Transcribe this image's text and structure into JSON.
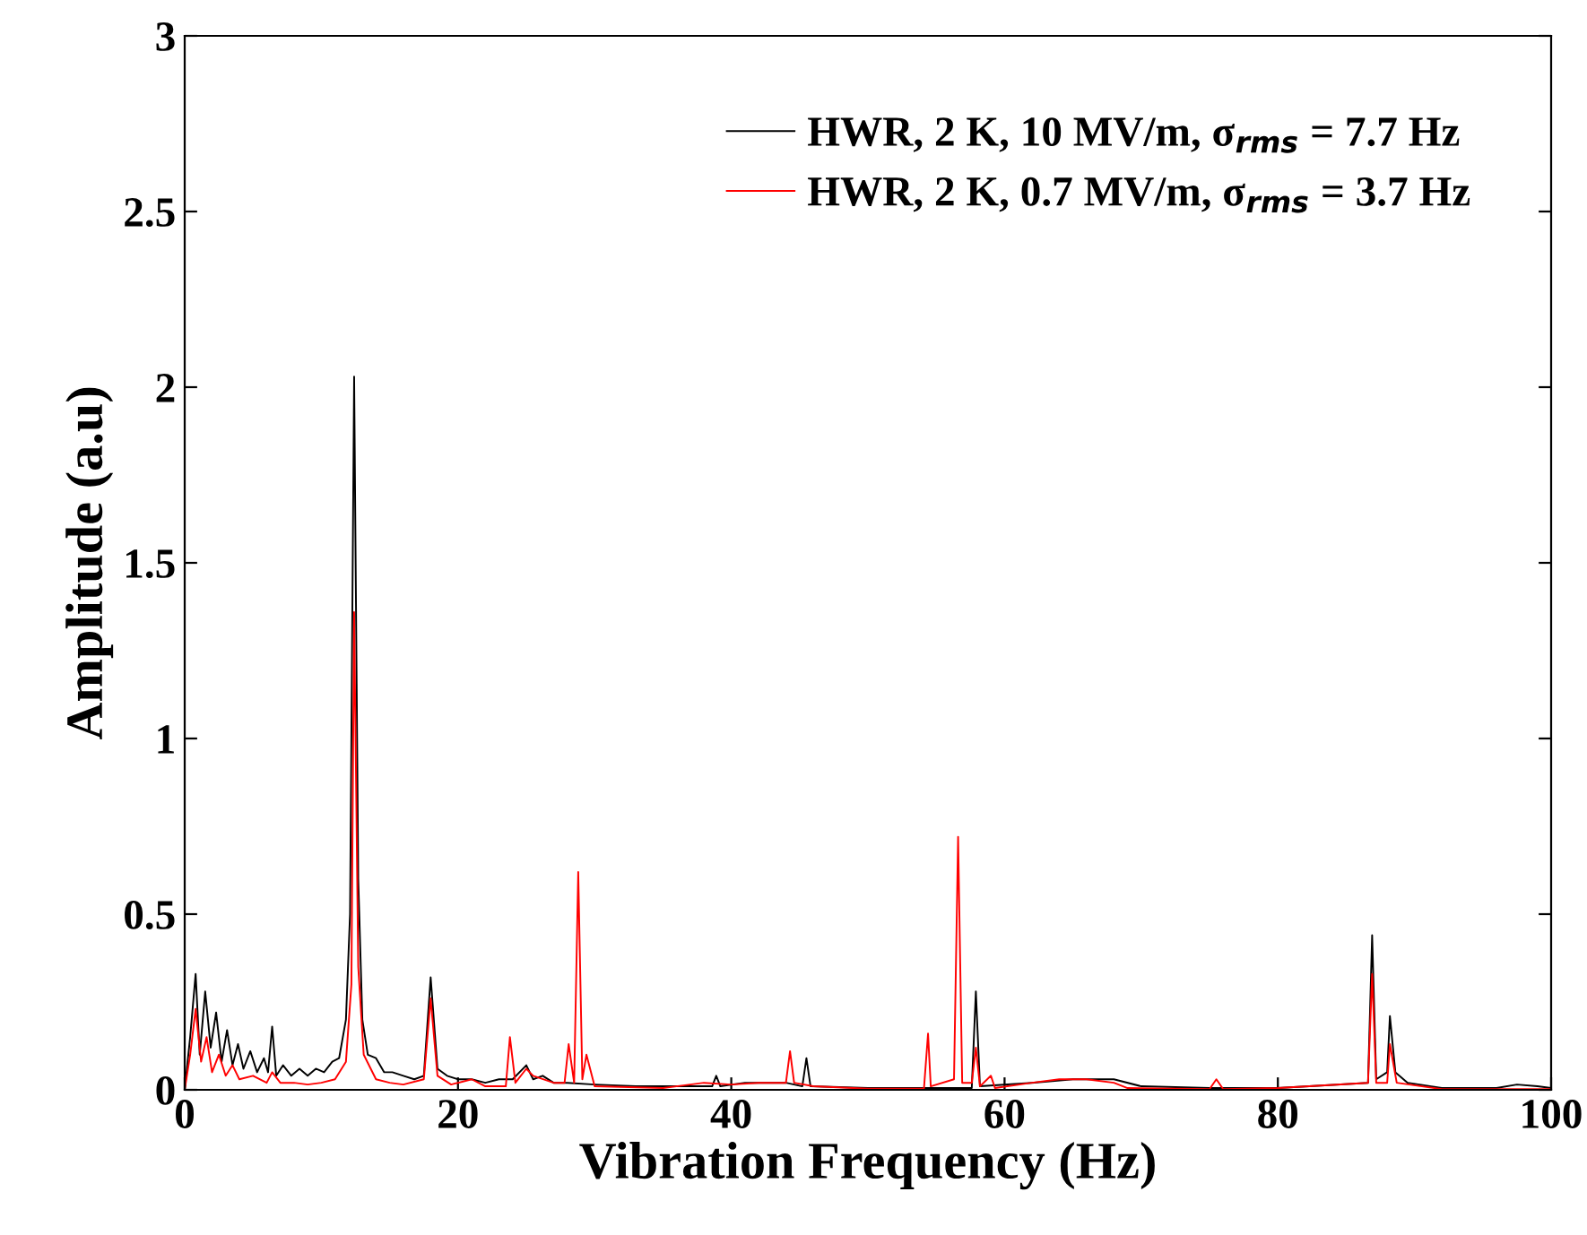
{
  "chart_data": {
    "type": "line",
    "xlabel": "Vibration Frequency (Hz)",
    "ylabel": "Amplitude (a.u)",
    "xlim": [
      0,
      100
    ],
    "xticks": [
      0,
      20,
      40,
      60,
      80,
      100
    ],
    "ylim": [
      0,
      3
    ],
    "yticks": [
      0,
      0.5,
      1,
      1.5,
      2,
      2.5,
      3
    ],
    "grid": false,
    "legend": "top right",
    "line_style": "solid",
    "marker": "none",
    "series": [
      {
        "name": "HWR, 2 K, 10 MV/m, σ$_{rms}$ = 7.7 Hz",
        "color": "#000000",
        "x": [
          0,
          0.4,
          0.8,
          1.1,
          1.5,
          1.9,
          2.3,
          2.7,
          3.1,
          3.5,
          3.9,
          4.3,
          4.8,
          5.3,
          5.8,
          6.1,
          6.4,
          6.7,
          7.2,
          7.8,
          8.4,
          9,
          9.6,
          10.2,
          10.8,
          11.3,
          11.8,
          12.1,
          12.4,
          12.7,
          13,
          13.4,
          14,
          14.6,
          15.2,
          16,
          16.8,
          17.5,
          18,
          18.5,
          19.2,
          20,
          21,
          22,
          23,
          24,
          25,
          25.5,
          26.2,
          27,
          28,
          30,
          33,
          36,
          38.6,
          38.9,
          39.2,
          41,
          44,
          45.2,
          45.5,
          45.8,
          50,
          54,
          57.6,
          57.9,
          58.2,
          62,
          65,
          68,
          70,
          75,
          80,
          86.6,
          86.9,
          87.2,
          88,
          88.2,
          88.6,
          89.5,
          92,
          96,
          97.5,
          99,
          100
        ],
        "values": [
          0,
          0.15,
          0.33,
          0.1,
          0.28,
          0.12,
          0.22,
          0.08,
          0.17,
          0.07,
          0.13,
          0.06,
          0.11,
          0.05,
          0.09,
          0.05,
          0.18,
          0.04,
          0.07,
          0.04,
          0.06,
          0.04,
          0.06,
          0.05,
          0.08,
          0.09,
          0.2,
          0.5,
          2.03,
          0.6,
          0.2,
          0.1,
          0.09,
          0.05,
          0.05,
          0.04,
          0.03,
          0.04,
          0.32,
          0.06,
          0.04,
          0.03,
          0.03,
          0.02,
          0.03,
          0.03,
          0.07,
          0.03,
          0.04,
          0.02,
          0.02,
          0.015,
          0.01,
          0.01,
          0.01,
          0.04,
          0.01,
          0.02,
          0.02,
          0.01,
          0.09,
          0.01,
          0.005,
          0.005,
          0.005,
          0.28,
          0.01,
          0.02,
          0.03,
          0.03,
          0.01,
          0.005,
          0.005,
          0.02,
          0.44,
          0.03,
          0.05,
          0.21,
          0.05,
          0.02,
          0.005,
          0.005,
          0.015,
          0.01,
          0.005
        ]
      },
      {
        "name": "HWR, 2 K, 0.7 MV/m, σ$_{rms}$ = 3.7 Hz",
        "color": "#ff0000",
        "x": [
          0,
          0.4,
          0.8,
          1.2,
          1.6,
          2,
          2.5,
          3,
          3.5,
          4,
          5,
          6,
          6.4,
          7,
          8,
          9,
          10,
          11,
          11.8,
          12.2,
          12.4,
          12.7,
          13.1,
          14,
          15,
          16,
          17.5,
          18,
          18.5,
          19.5,
          21,
          22,
          23.5,
          23.8,
          24.2,
          25,
          25.5,
          27,
          27.8,
          28.1,
          28.5,
          28.8,
          29.1,
          29.4,
          30,
          35,
          38,
          40,
          42,
          44,
          44.3,
          44.6,
          46,
          50,
          54.1,
          54.4,
          54.6,
          56.3,
          56.6,
          56.9,
          57.6,
          57.9,
          58.2,
          59,
          59.3,
          62,
          64,
          66,
          68,
          69,
          75,
          75.5,
          76,
          80,
          86.6,
          86.9,
          87.2,
          88,
          88.2,
          88.7,
          92,
          100
        ],
        "values": [
          0,
          0.1,
          0.23,
          0.08,
          0.15,
          0.05,
          0.1,
          0.04,
          0.07,
          0.03,
          0.04,
          0.02,
          0.05,
          0.02,
          0.02,
          0.015,
          0.02,
          0.03,
          0.08,
          0.3,
          1.36,
          0.35,
          0.1,
          0.03,
          0.02,
          0.015,
          0.03,
          0.26,
          0.04,
          0.015,
          0.03,
          0.01,
          0.01,
          0.15,
          0.02,
          0.06,
          0.04,
          0.02,
          0.02,
          0.13,
          0.02,
          0.62,
          0.03,
          0.1,
          0.01,
          0.005,
          0.02,
          0.015,
          0.02,
          0.02,
          0.11,
          0.02,
          0.01,
          0.003,
          0.003,
          0.16,
          0.01,
          0.03,
          0.72,
          0.02,
          0.02,
          0.12,
          0.01,
          0.04,
          0.005,
          0.02,
          0.03,
          0.03,
          0.02,
          0.005,
          0.002,
          0.03,
          0.002,
          0.005,
          0.02,
          0.33,
          0.02,
          0.02,
          0.13,
          0.02,
          0.002,
          0.002
        ]
      }
    ]
  }
}
